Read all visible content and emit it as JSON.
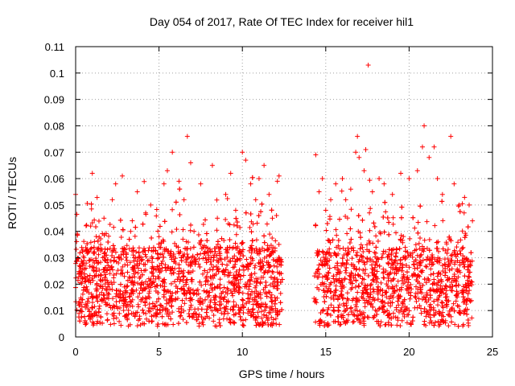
{
  "chart_data": {
    "type": "scatter",
    "title": "Day 054 of 2017, Rate Of TEC Index for receiver hil1",
    "xlabel": "GPS time / hours",
    "ylabel": "ROTI / TECUs",
    "xlim": [
      0,
      25
    ],
    "ylim": [
      0,
      0.11
    ],
    "xticks": [
      "0",
      "5",
      "10",
      "15",
      "20",
      "25"
    ],
    "yticks": [
      "0",
      "0.01",
      "0.02",
      "0.03",
      "0.04",
      "0.05",
      "0.06",
      "0.07",
      "0.08",
      "0.09",
      "0.1",
      "0.11"
    ],
    "grid": true,
    "marker": "+",
    "color": "#ff0000",
    "data_gap_hours": [
      12.4,
      14.3
    ],
    "series": [
      {
        "name": "ROTI",
        "points": [
          [
            0.1,
            0.039
          ],
          [
            0.2,
            0.012
          ],
          [
            0.4,
            0.022
          ],
          [
            0.5,
            0.03
          ],
          [
            0.7,
            0.018
          ],
          [
            0.9,
            0.042
          ],
          [
            1.0,
            0.062
          ],
          [
            1.1,
            0.025
          ],
          [
            1.3,
            0.015
          ],
          [
            1.5,
            0.035
          ],
          [
            1.7,
            0.045
          ],
          [
            2.0,
            0.02
          ],
          [
            2.2,
            0.052
          ],
          [
            2.4,
            0.058
          ],
          [
            2.6,
            0.03
          ],
          [
            2.8,
            0.061
          ],
          [
            3.0,
            0.015
          ],
          [
            3.3,
            0.04
          ],
          [
            3.5,
            0.025
          ],
          [
            3.7,
            0.055
          ],
          [
            4.0,
            0.018
          ],
          [
            4.2,
            0.047
          ],
          [
            4.5,
            0.05
          ],
          [
            4.8,
            0.022
          ],
          [
            5.0,
            0.038
          ],
          [
            5.3,
            0.058
          ],
          [
            5.5,
            0.063
          ],
          [
            5.8,
            0.07
          ],
          [
            6.0,
            0.028
          ],
          [
            6.2,
            0.059
          ],
          [
            6.5,
            0.052
          ],
          [
            6.7,
            0.076
          ],
          [
            6.9,
            0.066
          ],
          [
            7.1,
            0.04
          ],
          [
            7.5,
            0.058
          ],
          [
            7.8,
            0.03
          ],
          [
            8.2,
            0.065
          ],
          [
            8.5,
            0.045
          ],
          [
            9.0,
            0.054
          ],
          [
            9.3,
            0.062
          ],
          [
            9.6,
            0.048
          ],
          [
            10.0,
            0.07
          ],
          [
            10.2,
            0.067
          ],
          [
            10.5,
            0.058
          ],
          [
            10.8,
            0.052
          ],
          [
            11.0,
            0.06
          ],
          [
            11.3,
            0.065
          ],
          [
            11.6,
            0.054
          ],
          [
            11.8,
            0.045
          ],
          [
            12.1,
            0.059
          ],
          [
            12.2,
            0.061
          ],
          [
            14.4,
            0.069
          ],
          [
            14.6,
            0.055
          ],
          [
            14.8,
            0.06
          ],
          [
            15.0,
            0.048
          ],
          [
            15.3,
            0.052
          ],
          [
            15.6,
            0.058
          ],
          [
            16.0,
            0.06
          ],
          [
            16.2,
            0.052
          ],
          [
            16.5,
            0.056
          ],
          [
            16.8,
            0.07
          ],
          [
            16.9,
            0.076
          ],
          [
            17.0,
            0.068
          ],
          [
            17.3,
            0.063
          ],
          [
            17.4,
            0.071
          ],
          [
            17.55,
            0.103
          ],
          [
            17.8,
            0.055
          ],
          [
            18.2,
            0.06
          ],
          [
            18.5,
            0.058
          ],
          [
            19.0,
            0.054
          ],
          [
            19.5,
            0.062
          ],
          [
            20.0,
            0.06
          ],
          [
            20.5,
            0.063
          ],
          [
            20.8,
            0.072
          ],
          [
            20.9,
            0.08
          ],
          [
            21.2,
            0.068
          ],
          [
            21.5,
            0.072
          ],
          [
            21.7,
            0.06
          ],
          [
            22.0,
            0.054
          ],
          [
            22.5,
            0.076
          ],
          [
            22.7,
            0.058
          ],
          [
            23.0,
            0.05
          ],
          [
            23.3,
            0.047
          ],
          [
            23.6,
            0.05
          ],
          [
            23.8,
            0.044
          ]
        ]
      }
    ]
  }
}
